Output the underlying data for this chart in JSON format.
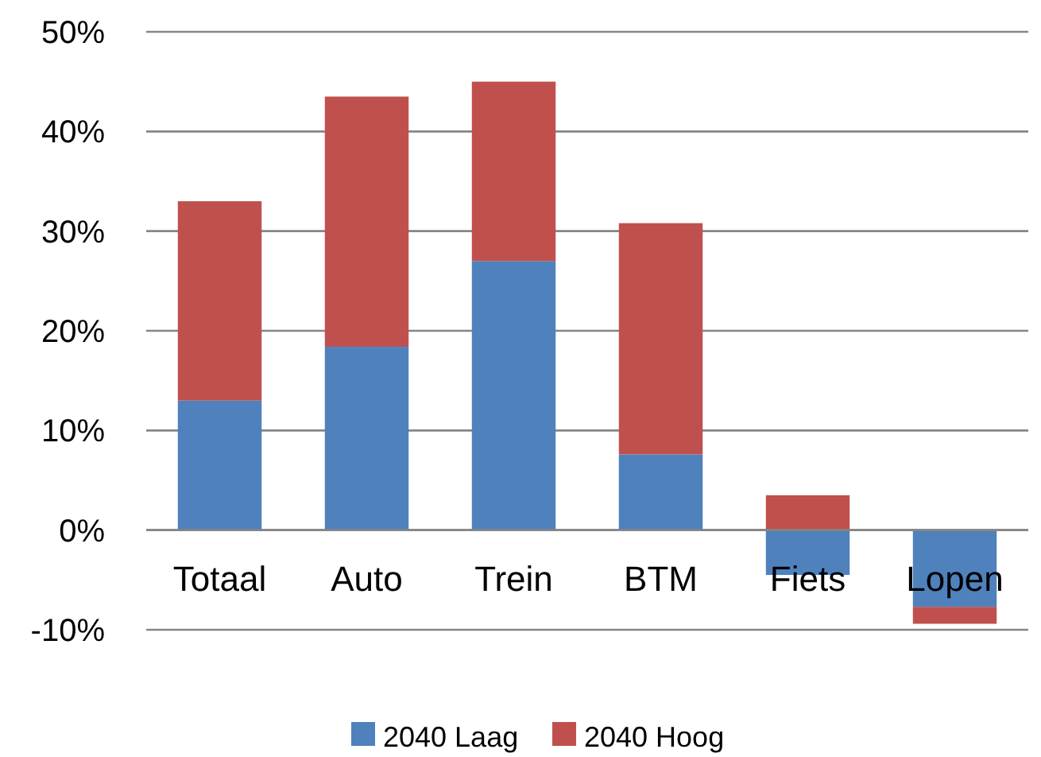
{
  "chart_data": {
    "type": "bar",
    "stacked": true,
    "categories": [
      "Totaal",
      "Auto",
      "Trein",
      "BTM",
      "Fiets",
      "Lopen"
    ],
    "series": [
      {
        "name": "2040 Laag",
        "color": "#4f81bd",
        "values": [
          13,
          18.4,
          27,
          7.6,
          -4.5,
          -7.7
        ]
      },
      {
        "name": "2040 Hoog",
        "color": "#c0504d",
        "values": [
          20,
          25.1,
          18,
          23.2,
          3.5,
          -1.7
        ]
      }
    ],
    "ylim": [
      -10,
      50
    ],
    "yticks": [
      {
        "value": -10,
        "label": "-10%"
      },
      {
        "value": 0,
        "label": "0%"
      },
      {
        "value": 10,
        "label": "10%"
      },
      {
        "value": 20,
        "label": "20%"
      },
      {
        "value": 30,
        "label": "30%"
      },
      {
        "value": 40,
        "label": "40%"
      },
      {
        "value": 50,
        "label": "50%"
      }
    ],
    "grid": "y",
    "legend": "bottom"
  }
}
